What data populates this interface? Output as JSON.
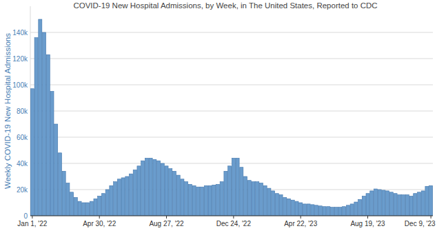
{
  "chart_data": {
    "type": "bar",
    "title": "COVID-19 New Hospital Admissions, by Week, in The United States, Reported to CDC",
    "y_label": "Weekly COVID-19 New Hospital Admissions",
    "color": "#6a9ccc",
    "grid": true,
    "ylim": [
      0,
      160000
    ],
    "yticks": [
      0,
      {
        "value": 20000,
        "label": "20k"
      },
      {
        "value": 40000,
        "label": "40k"
      },
      {
        "value": 60000,
        "label": "60k"
      },
      {
        "value": 80000,
        "label": "80k"
      },
      {
        "value": 100000,
        "label": "100k"
      },
      {
        "value": 120000,
        "label": "120k"
      },
      {
        "value": 140000,
        "label": "140k"
      }
    ],
    "categories": [
      "Jan 1, '22",
      null,
      null,
      null,
      null,
      null,
      null,
      null,
      null,
      null,
      null,
      null,
      null,
      null,
      null,
      null,
      null,
      "Apr 30, '22",
      null,
      null,
      null,
      null,
      null,
      null,
      null,
      null,
      null,
      null,
      null,
      null,
      null,
      null,
      null,
      null,
      "Aug 27, '22",
      null,
      null,
      null,
      null,
      null,
      null,
      null,
      null,
      null,
      null,
      null,
      null,
      null,
      null,
      null,
      null,
      "Dec 24, '22",
      null,
      null,
      null,
      null,
      null,
      null,
      null,
      null,
      null,
      null,
      null,
      null,
      null,
      null,
      null,
      null,
      "Apr 22, '23",
      null,
      null,
      null,
      null,
      null,
      null,
      null,
      null,
      null,
      null,
      null,
      null,
      null,
      null,
      null,
      null,
      "Aug 19, '23",
      null,
      null,
      null,
      null,
      null,
      null,
      null,
      null,
      null,
      null,
      null,
      null,
      null,
      null,
      null,
      "Dec 9, '23"
    ],
    "values": [
      97000,
      136000,
      150000,
      140000,
      123000,
      95000,
      70000,
      48000,
      34000,
      25000,
      18000,
      14000,
      11000,
      10000,
      10000,
      11000,
      13000,
      15000,
      17000,
      20000,
      23000,
      26000,
      28000,
      29000,
      30000,
      32000,
      35000,
      38000,
      42000,
      44000,
      44000,
      43000,
      42000,
      40000,
      38000,
      36000,
      34000,
      31000,
      28000,
      26000,
      24000,
      23000,
      22000,
      22000,
      23000,
      23000,
      23500,
      24000,
      26000,
      34000,
      38000,
      44000,
      44000,
      37000,
      30000,
      27000,
      26000,
      26000,
      25000,
      23000,
      21000,
      19000,
      17000,
      16000,
      14000,
      13000,
      12000,
      11000,
      10000,
      9000,
      9000,
      8500,
      8000,
      7500,
      7000,
      7000,
      6500,
      6500,
      6500,
      7000,
      8000,
      9000,
      10500,
      12500,
      15000,
      17000,
      19000,
      20500,
      20000,
      19500,
      19000,
      18000,
      17000,
      16000,
      16000,
      16000,
      15000,
      17000,
      18000,
      19000,
      22500,
      23000
    ]
  }
}
